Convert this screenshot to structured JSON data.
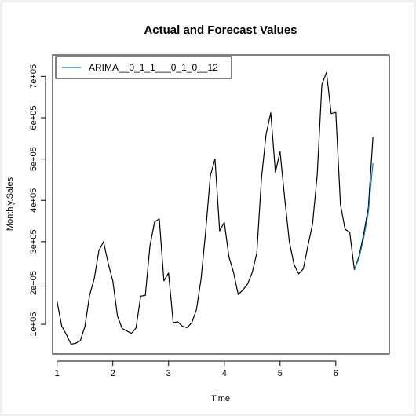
{
  "chart_data": {
    "type": "line",
    "title": "Actual and Forecast Values",
    "xlabel": "Time",
    "ylabel": "Monthly.Sales",
    "xlim": [
      0.92,
      6.96
    ],
    "ylim": [
      28000,
      752000
    ],
    "x_ticks": [
      1,
      2,
      3,
      4,
      5,
      6
    ],
    "x_tick_labels": [
      "1",
      "2",
      "3",
      "4",
      "5",
      "6"
    ],
    "y_ticks": [
      100000,
      200000,
      300000,
      400000,
      500000,
      600000,
      700000
    ],
    "y_tick_labels": [
      "1e+05",
      "2e+05",
      "3e+05",
      "4e+05",
      "5e+05",
      "6e+05",
      "7e+05"
    ],
    "grid": false,
    "legend": {
      "position": "top-left",
      "entries": [
        "ARIMA__0_1_1___0_1_0__12"
      ]
    },
    "series": [
      {
        "name": "Actual",
        "color": "#000000",
        "start": 1,
        "frequency": 12,
        "values": [
          155000,
          96000,
          75000,
          52000,
          54000,
          60000,
          95000,
          170000,
          210000,
          278000,
          300000,
          248000,
          205000,
          120000,
          90000,
          84000,
          78000,
          91000,
          168000,
          170000,
          290000,
          348000,
          355000,
          205000,
          224000,
          104000,
          106000,
          95000,
          92000,
          104000,
          135000,
          210000,
          326000,
          460000,
          500000,
          326000,
          347000,
          263000,
          225000,
          172000,
          183000,
          197000,
          225000,
          272000,
          453000,
          560000,
          612000,
          468000,
          518000,
          405000,
          300000,
          245000,
          222000,
          234000,
          290000,
          343000,
          462000,
          680000,
          710000,
          610000,
          613000,
          390000,
          330000,
          323000,
          232000,
          265000,
          318000,
          382000,
          553000
        ]
      },
      {
        "name": "ARIMA__0_1_1___0_1_0__12",
        "color": "#1f77b4",
        "start": 6.333,
        "frequency": 12,
        "values": [
          232000,
          260000,
          308000,
          370000,
          490000
        ]
      }
    ]
  }
}
